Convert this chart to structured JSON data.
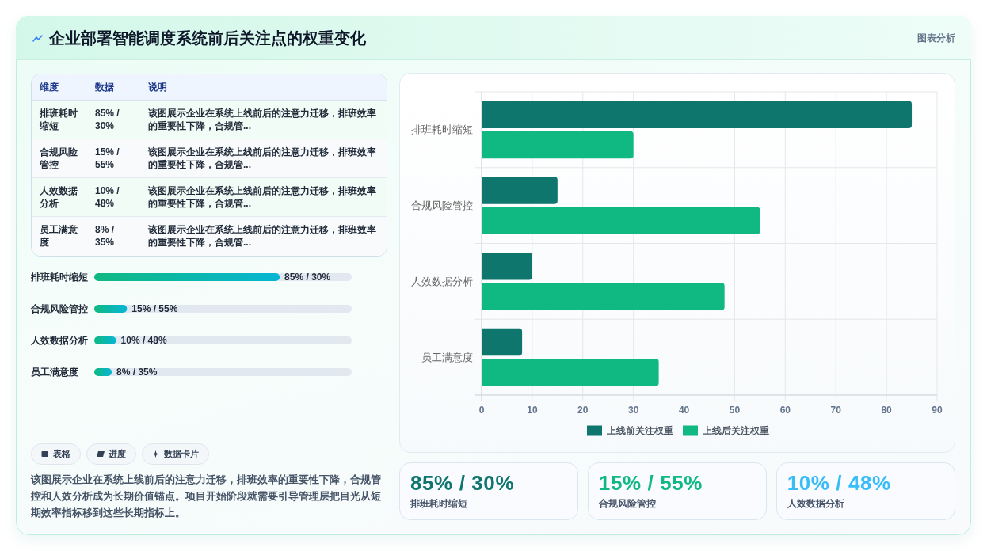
{
  "chart_data": [
    {
      "type": "other",
      "title": "企业部署智能调度系统前后关注点的权重变化",
      "annotations": [
        "图表分析"
      ]
    },
    {
      "type": "other",
      "annotations": [
        "维度",
        "数据",
        "说明",
        "排班耗时缩短",
        "85% / 30%",
        "该图展示企业在系统上线前后的注意力迁移，排班效率的重要性下降，合规管...",
        "合规风险管控",
        "15% / 55%",
        "该图展示企业在系统上线前后的注意力迁移，排班效率的重要性下降，合规管...",
        "人效数据分析",
        "10% / 48%",
        "该图展示企业在系统上线前后的注意力迁移，排班效率的重要性下降，合规管...",
        "员工满意度",
        "8% / 35%",
        "该图展示企业在系统上线前后的注意力迁移，排班效率的重要性下降，合规管..."
      ]
    },
    {
      "type": "bar",
      "orientation": "horizontal",
      "categories": [
        "排班耗时缩短",
        "合规风险管控",
        "人效数据分析",
        "员工满意度"
      ],
      "values": [
        85,
        15,
        10,
        8
      ],
      "value_labels": [
        "85% / 30%",
        "15% / 55%",
        "10% / 48%",
        "8% / 35%"
      ],
      "color": "#10b981",
      "tick_labels": "y"
    },
    {
      "type": "other",
      "annotations": [
        "表格",
        "进度",
        "数据卡片",
        "该图展示企业在系统上线前后的注意力迁移，排班效率的重要性下降，合规管控和人效分析成为长期价值锚点。项目开始阶段就需要引导管理层把目光从短期效率指标移到这些长期指标上。"
      ]
    },
    {
      "type": "bar",
      "orientation": "horizontal",
      "categories": [
        "排班耗时缩短",
        "合规风险管控",
        "人效数据分析",
        "员工满意度"
      ],
      "series": [
        {
          "name": "上线前关注权重",
          "color": "#0f766e",
          "values": [
            85,
            15,
            10,
            8
          ]
        },
        {
          "name": "上线后关注权重",
          "color": "#10b981",
          "values": [
            30,
            55,
            48,
            35
          ]
        }
      ],
      "xlim": [
        0,
        90
      ],
      "xticks": [
        0,
        10,
        20,
        30,
        40,
        50,
        60,
        70,
        80,
        90
      ],
      "grid": true,
      "legend": "bottom"
    },
    {
      "type": "other",
      "annotations": [
        "85% / 30%",
        "排班耗时缩短",
        "15% / 55%",
        "合规风险管控",
        "10% / 48%",
        "人效数据分析"
      ],
      "colors": [
        "#0f766e",
        "#10b981",
        "#38bdf8"
      ]
    }
  ]
}
